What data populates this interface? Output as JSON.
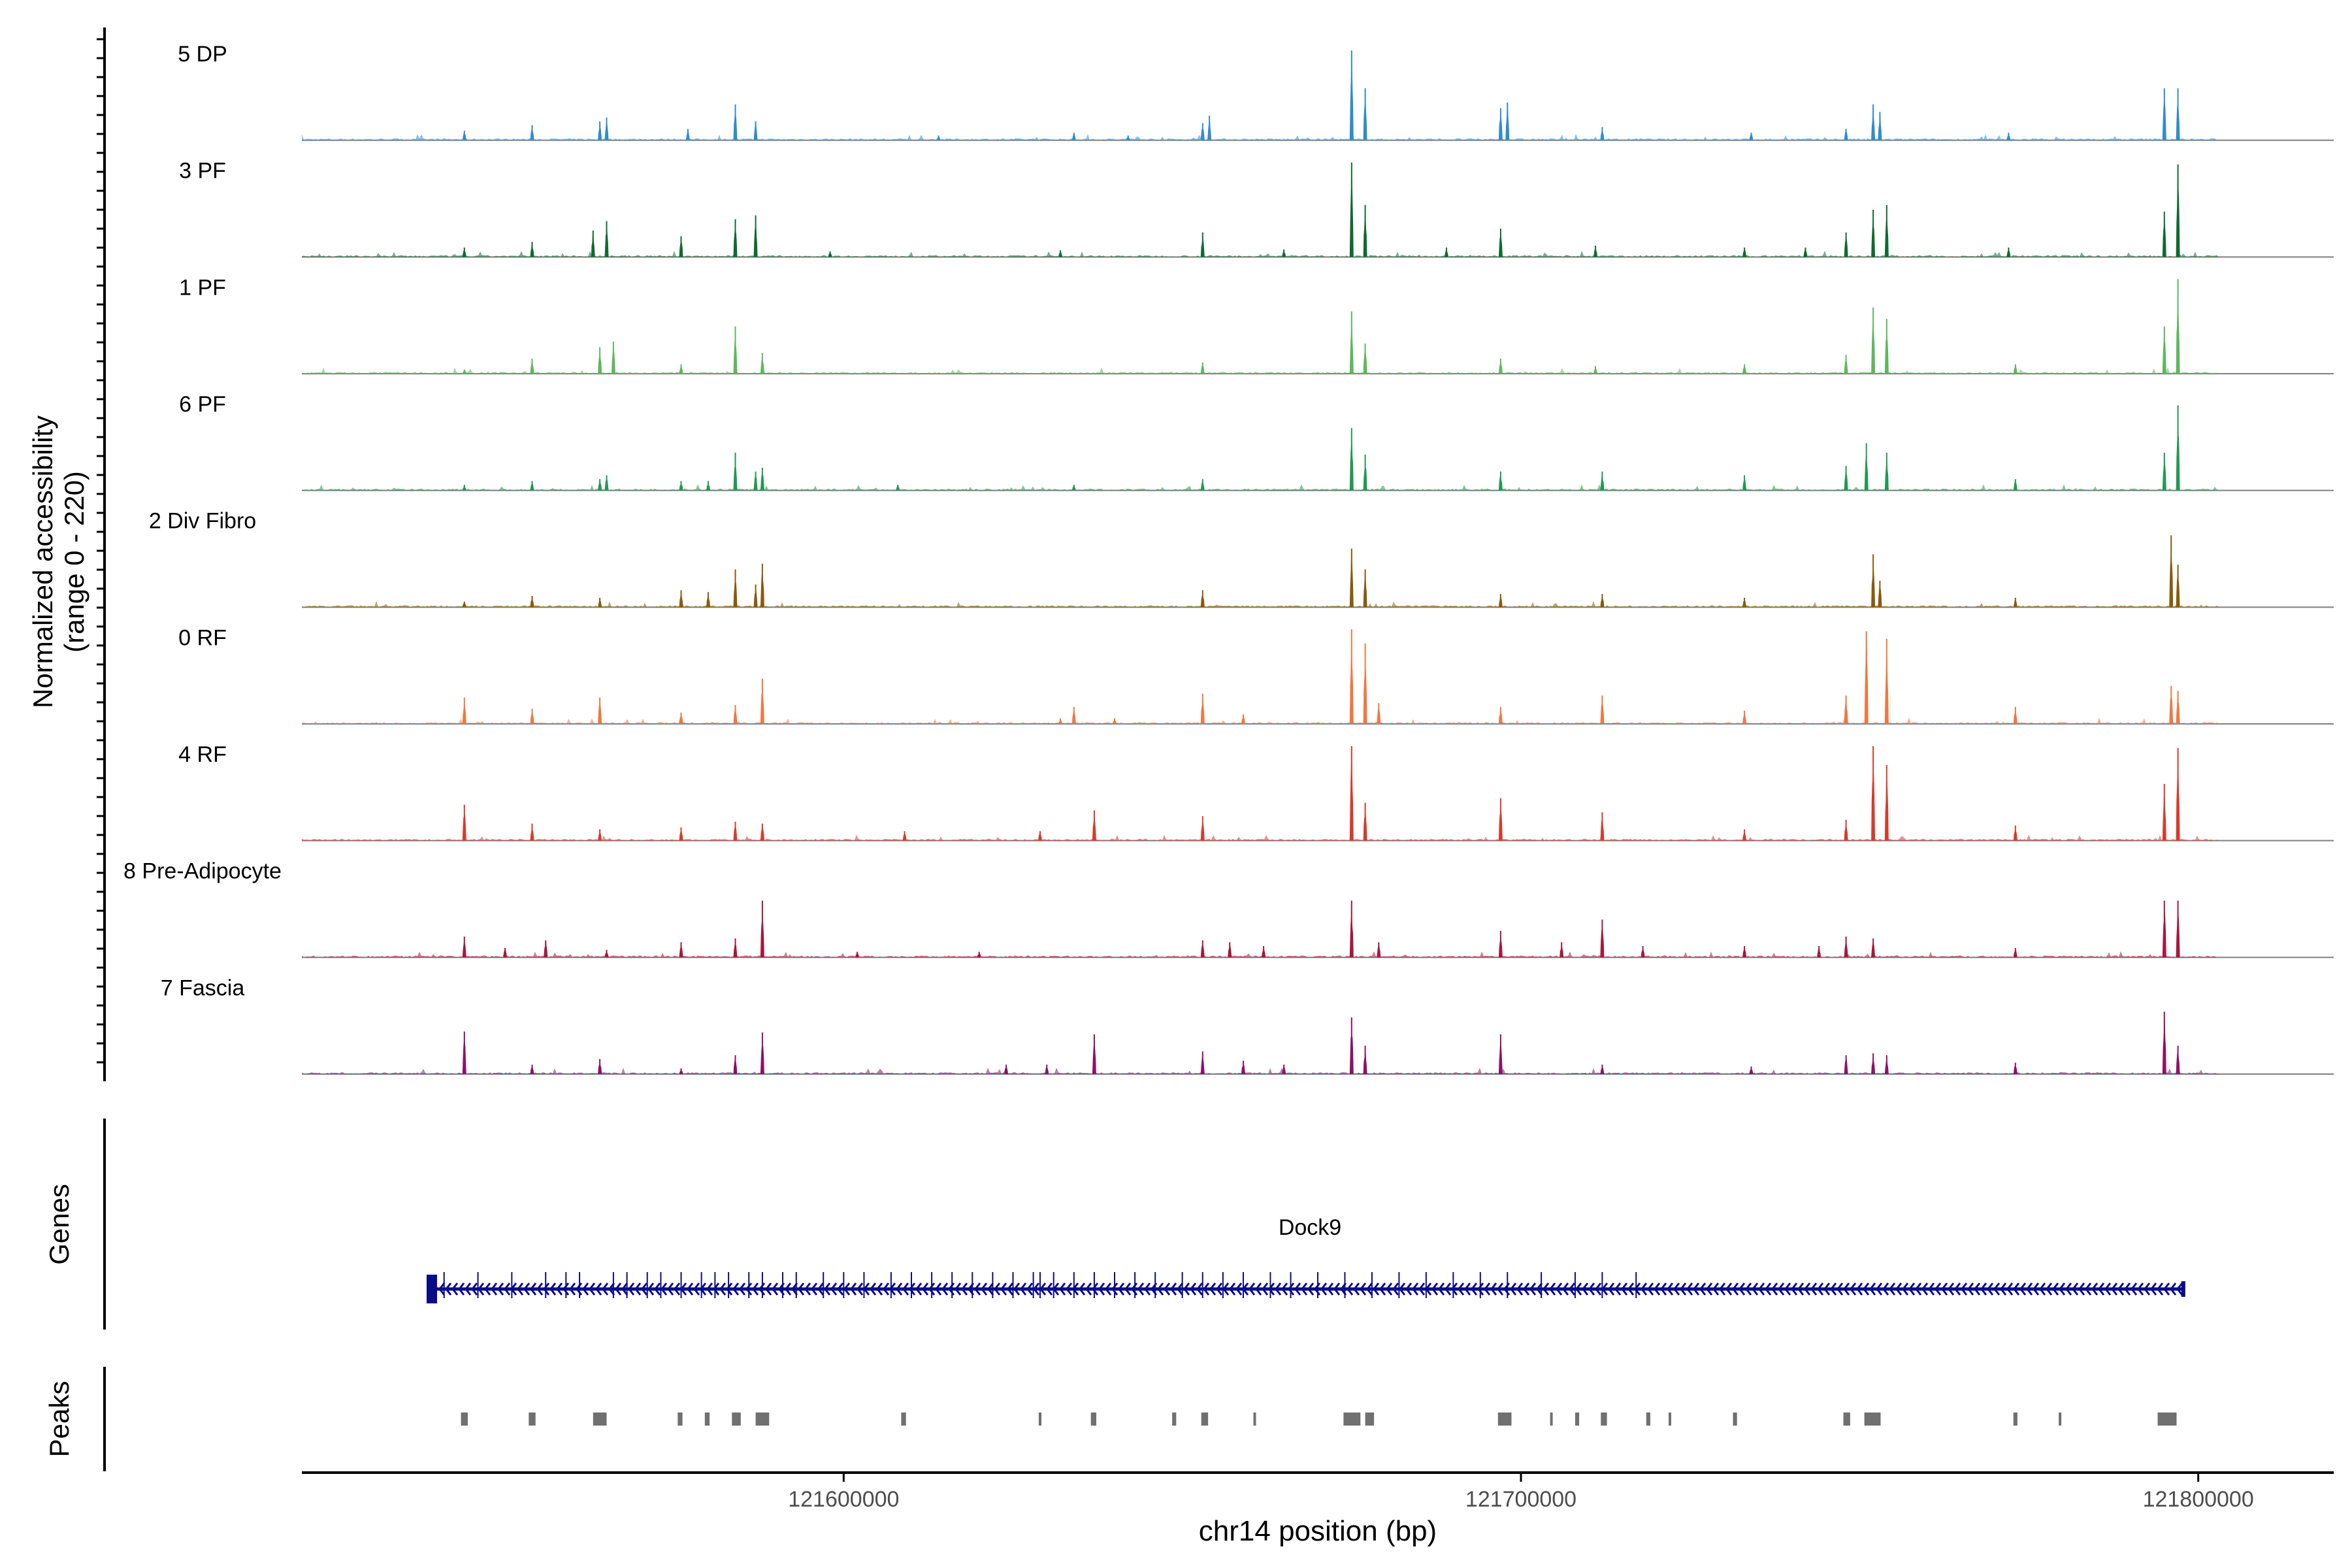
{
  "chart_data": {
    "type": "area",
    "title": "",
    "chromosome": "chr14",
    "xlabel": "chr14 position (bp)",
    "ylabel_line1": "Normalized accessibility",
    "ylabel_line2": "(range 0 - 220)",
    "yrange": [
      0,
      220
    ],
    "xlim": [
      121520000,
      121820000
    ],
    "x_ticks": [
      121600000,
      121700000,
      121800000
    ],
    "x_tick_labels": [
      "121600000",
      "121700000",
      "121800000"
    ],
    "track_extent": [
      121520000,
      121803000
    ],
    "peak_half_width_bp": 180,
    "tracks": [
      {
        "name": "5 DP",
        "color": "#2f8ccc",
        "peaks": [
          [
            121544000,
            0.1
          ],
          [
            121554000,
            0.16
          ],
          [
            121564000,
            0.2
          ],
          [
            121565000,
            0.24
          ],
          [
            121577000,
            0.12
          ],
          [
            121584000,
            0.38
          ],
          [
            121587000,
            0.2
          ],
          [
            121614000,
            0.05
          ],
          [
            121634000,
            0.08
          ],
          [
            121642000,
            0.05
          ],
          [
            121653000,
            0.18
          ],
          [
            121654000,
            0.26
          ],
          [
            121675000,
            0.95
          ],
          [
            121677000,
            0.55
          ],
          [
            121697000,
            0.34
          ],
          [
            121698000,
            0.4
          ],
          [
            121712000,
            0.14
          ],
          [
            121734000,
            0.08
          ],
          [
            121748000,
            0.12
          ],
          [
            121752000,
            0.38
          ],
          [
            121753000,
            0.3
          ],
          [
            121772000,
            0.08
          ],
          [
            121795000,
            0.55
          ],
          [
            121797000,
            0.55
          ]
        ]
      },
      {
        "name": "3 PF",
        "color": "#0e6b31",
        "peaks": [
          [
            121544000,
            0.1
          ],
          [
            121554000,
            0.16
          ],
          [
            121563000,
            0.28
          ],
          [
            121565000,
            0.38
          ],
          [
            121576000,
            0.22
          ],
          [
            121584000,
            0.4
          ],
          [
            121587000,
            0.44
          ],
          [
            121598000,
            0.06
          ],
          [
            121632000,
            0.07
          ],
          [
            121653000,
            0.26
          ],
          [
            121665000,
            0.08
          ],
          [
            121675000,
            1.0
          ],
          [
            121677000,
            0.55
          ],
          [
            121689000,
            0.1
          ],
          [
            121697000,
            0.3
          ],
          [
            121711000,
            0.12
          ],
          [
            121733000,
            0.1
          ],
          [
            121742000,
            0.1
          ],
          [
            121748000,
            0.26
          ],
          [
            121752000,
            0.5
          ],
          [
            121754000,
            0.55
          ],
          [
            121772000,
            0.1
          ],
          [
            121795000,
            0.48
          ],
          [
            121797000,
            0.98
          ]
        ]
      },
      {
        "name": "1 PF",
        "color": "#5cb85c",
        "peaks": [
          [
            121544000,
            0.04
          ],
          [
            121554000,
            0.16
          ],
          [
            121564000,
            0.28
          ],
          [
            121566000,
            0.34
          ],
          [
            121576000,
            0.1
          ],
          [
            121584000,
            0.5
          ],
          [
            121588000,
            0.22
          ],
          [
            121653000,
            0.12
          ],
          [
            121675000,
            0.66
          ],
          [
            121677000,
            0.32
          ],
          [
            121697000,
            0.16
          ],
          [
            121711000,
            0.08
          ],
          [
            121733000,
            0.1
          ],
          [
            121748000,
            0.2
          ],
          [
            121752000,
            0.7
          ],
          [
            121754000,
            0.58
          ],
          [
            121773000,
            0.1
          ],
          [
            121795000,
            0.5
          ],
          [
            121797000,
            1.0
          ]
        ]
      },
      {
        "name": "6 PF",
        "color": "#1f9a52",
        "peaks": [
          [
            121544000,
            0.06
          ],
          [
            121554000,
            0.1
          ],
          [
            121564000,
            0.12
          ],
          [
            121565000,
            0.16
          ],
          [
            121576000,
            0.1
          ],
          [
            121580000,
            0.1
          ],
          [
            121584000,
            0.4
          ],
          [
            121587000,
            0.2
          ],
          [
            121588000,
            0.24
          ],
          [
            121608000,
            0.06
          ],
          [
            121634000,
            0.06
          ],
          [
            121653000,
            0.12
          ],
          [
            121675000,
            0.66
          ],
          [
            121677000,
            0.38
          ],
          [
            121697000,
            0.2
          ],
          [
            121712000,
            0.2
          ],
          [
            121733000,
            0.16
          ],
          [
            121748000,
            0.26
          ],
          [
            121751000,
            0.5
          ],
          [
            121754000,
            0.4
          ],
          [
            121773000,
            0.12
          ],
          [
            121795000,
            0.4
          ],
          [
            121797000,
            0.9
          ]
        ]
      },
      {
        "name": "2 Div Fibro",
        "color": "#8b5a0a",
        "peaks": [
          [
            121544000,
            0.06
          ],
          [
            121554000,
            0.12
          ],
          [
            121564000,
            0.1
          ],
          [
            121576000,
            0.18
          ],
          [
            121580000,
            0.16
          ],
          [
            121584000,
            0.4
          ],
          [
            121587000,
            0.24
          ],
          [
            121588000,
            0.46
          ],
          [
            121653000,
            0.18
          ],
          [
            121675000,
            0.62
          ],
          [
            121677000,
            0.4
          ],
          [
            121697000,
            0.14
          ],
          [
            121712000,
            0.14
          ],
          [
            121733000,
            0.1
          ],
          [
            121752000,
            0.56
          ],
          [
            121753000,
            0.28
          ],
          [
            121773000,
            0.1
          ],
          [
            121796000,
            0.76
          ],
          [
            121797000,
            0.45
          ]
        ]
      },
      {
        "name": "0 RF",
        "color": "#f2773f",
        "peaks": [
          [
            121544000,
            0.28
          ],
          [
            121554000,
            0.16
          ],
          [
            121564000,
            0.28
          ],
          [
            121576000,
            0.12
          ],
          [
            121584000,
            0.2
          ],
          [
            121588000,
            0.48
          ],
          [
            121632000,
            0.06
          ],
          [
            121640000,
            0.06
          ],
          [
            121634000,
            0.18
          ],
          [
            121653000,
            0.32
          ],
          [
            121659000,
            0.1
          ],
          [
            121675000,
            1.0
          ],
          [
            121677000,
            0.85
          ],
          [
            121679000,
            0.22
          ],
          [
            121697000,
            0.18
          ],
          [
            121712000,
            0.3
          ],
          [
            121733000,
            0.14
          ],
          [
            121748000,
            0.3
          ],
          [
            121751000,
            0.98
          ],
          [
            121754000,
            0.9
          ],
          [
            121773000,
            0.18
          ],
          [
            121796000,
            0.4
          ],
          [
            121797000,
            0.35
          ]
        ]
      },
      {
        "name": "4 RF",
        "color": "#d93a2b",
        "peaks": [
          [
            121544000,
            0.38
          ],
          [
            121554000,
            0.18
          ],
          [
            121564000,
            0.12
          ],
          [
            121576000,
            0.14
          ],
          [
            121584000,
            0.2
          ],
          [
            121588000,
            0.18
          ],
          [
            121609000,
            0.1
          ],
          [
            121629000,
            0.1
          ],
          [
            121637000,
            0.32
          ],
          [
            121653000,
            0.26
          ],
          [
            121675000,
            1.0
          ],
          [
            121677000,
            0.4
          ],
          [
            121697000,
            0.45
          ],
          [
            121712000,
            0.3
          ],
          [
            121733000,
            0.12
          ],
          [
            121748000,
            0.22
          ],
          [
            121752000,
            1.0
          ],
          [
            121754000,
            0.8
          ],
          [
            121773000,
            0.16
          ],
          [
            121795000,
            0.6
          ],
          [
            121797000,
            0.98
          ]
        ]
      },
      {
        "name": "8 Pre-Adipocyte",
        "color": "#a8163f",
        "peaks": [
          [
            121544000,
            0.22
          ],
          [
            121550000,
            0.1
          ],
          [
            121556000,
            0.18
          ],
          [
            121565000,
            0.08
          ],
          [
            121576000,
            0.16
          ],
          [
            121584000,
            0.2
          ],
          [
            121588000,
            0.6
          ],
          [
            121602000,
            0.06
          ],
          [
            121620000,
            0.06
          ],
          [
            121653000,
            0.18
          ],
          [
            121657000,
            0.16
          ],
          [
            121662000,
            0.12
          ],
          [
            121675000,
            0.6
          ],
          [
            121679000,
            0.16
          ],
          [
            121697000,
            0.28
          ],
          [
            121706000,
            0.16
          ],
          [
            121712000,
            0.4
          ],
          [
            121718000,
            0.12
          ],
          [
            121733000,
            0.12
          ],
          [
            121744000,
            0.12
          ],
          [
            121748000,
            0.22
          ],
          [
            121752000,
            0.2
          ],
          [
            121773000,
            0.1
          ],
          [
            121795000,
            0.6
          ],
          [
            121797000,
            0.6
          ]
        ]
      },
      {
        "name": "7 Fascia",
        "color": "#8f1068",
        "peaks": [
          [
            121544000,
            0.45
          ],
          [
            121554000,
            0.1
          ],
          [
            121564000,
            0.16
          ],
          [
            121576000,
            0.06
          ],
          [
            121584000,
            0.2
          ],
          [
            121588000,
            0.44
          ],
          [
            121624000,
            0.1
          ],
          [
            121630000,
            0.1
          ],
          [
            121637000,
            0.42
          ],
          [
            121653000,
            0.24
          ],
          [
            121659000,
            0.14
          ],
          [
            121665000,
            0.1
          ],
          [
            121675000,
            0.6
          ],
          [
            121677000,
            0.3
          ],
          [
            121697000,
            0.42
          ],
          [
            121712000,
            0.1
          ],
          [
            121734000,
            0.08
          ],
          [
            121748000,
            0.2
          ],
          [
            121752000,
            0.22
          ],
          [
            121754000,
            0.2
          ],
          [
            121773000,
            0.12
          ],
          [
            121795000,
            0.66
          ],
          [
            121797000,
            0.3
          ]
        ]
      }
    ],
    "gene": {
      "label": "Dock9",
      "color": "#0b0b8a",
      "start": 121539000,
      "end": 121797800,
      "strand": "-",
      "exons": [
        121541000,
        121546000,
        121551000,
        121556000,
        121559000,
        121561000,
        121566000,
        121568000,
        121571000,
        121573000,
        121576000,
        121579000,
        121581000,
        121583000,
        121586000,
        121588000,
        121591000,
        121593000,
        121597000,
        121600000,
        121603000,
        121607000,
        121610000,
        121613000,
        121616000,
        121619000,
        121622000,
        121625000,
        121628000,
        121629000,
        121631000,
        121634000,
        121637000,
        121640000,
        121643000,
        121646000,
        121650000,
        121653000,
        121656000,
        121659000,
        121663000,
        121666000,
        121670000,
        121674000,
        121678000,
        121682000,
        121686000,
        121690000,
        121694000,
        121698000,
        121703000,
        121708000,
        121712000,
        121717000
      ]
    },
    "peak_regions": [
      [
        121543500,
        121544500
      ],
      [
        121553500,
        121554500
      ],
      [
        121563000,
        121565000
      ],
      [
        121575500,
        121576200
      ],
      [
        121579500,
        121580200
      ],
      [
        121583500,
        121584800
      ],
      [
        121587000,
        121589000
      ],
      [
        121608500,
        121609200
      ],
      [
        121628800,
        121629200
      ],
      [
        121636500,
        121637300
      ],
      [
        121648500,
        121649100
      ],
      [
        121652800,
        121653800
      ],
      [
        121660500,
        121660800
      ],
      [
        121673800,
        121676300
      ],
      [
        121677000,
        121678300
      ],
      [
        121696600,
        121698600
      ],
      [
        121704300,
        121704600
      ],
      [
        121708000,
        121708600
      ],
      [
        121711800,
        121712700
      ],
      [
        121718500,
        121719100
      ],
      [
        121721800,
        121722100
      ],
      [
        121731300,
        121731900
      ],
      [
        121747600,
        121748600
      ],
      [
        121750700,
        121753100
      ],
      [
        121772700,
        121773300
      ],
      [
        121779400,
        121779700
      ],
      [
        121794000,
        121796800
      ]
    ],
    "peak_color": "#707070",
    "panel_labels": {
      "genes": "Genes",
      "peaks": "Peaks"
    }
  }
}
